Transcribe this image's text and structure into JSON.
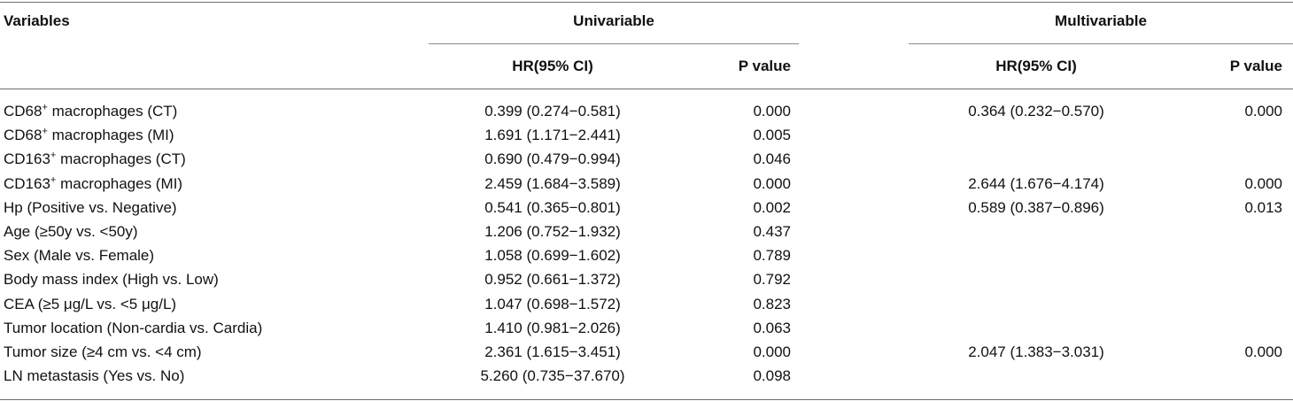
{
  "table": {
    "headers": {
      "variables": "Variables",
      "univariable": "Univariable",
      "multivariable": "Multivariable",
      "uni_hr": "HR(95% CI)",
      "uni_p": "P value",
      "multi_hr": "HR(95% CI)",
      "multi_p": "P value"
    },
    "rows": [
      {
        "label": "CD68",
        "sup": "+",
        "suffix": " macrophages (CT)",
        "uni_hr": "0.399 (0.274−0.581)",
        "uni_p": "0.000",
        "multi_hr": "0.364 (0.232−0.570)",
        "multi_p": "0.000"
      },
      {
        "label": "CD68",
        "sup": "+",
        "suffix": " macrophages (MI)",
        "uni_hr": "1.691 (1.171−2.441)",
        "uni_p": "0.005",
        "multi_hr": "",
        "multi_p": ""
      },
      {
        "label": "CD163",
        "sup": "+",
        "suffix": " macrophages (CT)",
        "uni_hr": "0.690 (0.479−0.994)",
        "uni_p": "0.046",
        "multi_hr": "",
        "multi_p": ""
      },
      {
        "label": "CD163",
        "sup": "+",
        "suffix": " macrophages (MI)",
        "uni_hr": "2.459 (1.684−3.589)",
        "uni_p": "0.000",
        "multi_hr": "2.644 (1.676−4.174)",
        "multi_p": "0.000"
      },
      {
        "label": "Hp (Positive vs. Negative)",
        "sup": "",
        "suffix": "",
        "uni_hr": "0.541 (0.365−0.801)",
        "uni_p": "0.002",
        "multi_hr": "0.589 (0.387−0.896)",
        "multi_p": "0.013"
      },
      {
        "label": "Age (≥50y vs. <50y)",
        "sup": "",
        "suffix": "",
        "uni_hr": "1.206 (0.752−1.932)",
        "uni_p": "0.437",
        "multi_hr": "",
        "multi_p": ""
      },
      {
        "label": "Sex (Male vs. Female)",
        "sup": "",
        "suffix": "",
        "uni_hr": "1.058 (0.699−1.602)",
        "uni_p": "0.789",
        "multi_hr": "",
        "multi_p": ""
      },
      {
        "label": "Body mass index (High vs. Low)",
        "sup": "",
        "suffix": "",
        "uni_hr": "0.952 (0.661−1.372)",
        "uni_p": "0.792",
        "multi_hr": "",
        "multi_p": ""
      },
      {
        "label": "CEA (≥5 μg/L vs. <5 μg/L)",
        "sup": "",
        "suffix": "",
        "uni_hr": "1.047 (0.698−1.572)",
        "uni_p": "0.823",
        "multi_hr": "",
        "multi_p": ""
      },
      {
        "label": "Tumor location (Non-cardia vs. Cardia)",
        "sup": "",
        "suffix": "",
        "uni_hr": "1.410 (0.981−2.026)",
        "uni_p": "0.063",
        "multi_hr": "",
        "multi_p": ""
      },
      {
        "label": "Tumor size (≥4 cm vs. <4 cm)",
        "sup": "",
        "suffix": "",
        "uni_hr": "2.361 (1.615−3.451)",
        "uni_p": "0.000",
        "multi_hr": "2.047 (1.383−3.031)",
        "multi_p": "0.000"
      },
      {
        "label": "LN metastasis (Yes vs. No)",
        "sup": "",
        "suffix": "",
        "uni_hr": "5.260 (0.735−37.670)",
        "uni_p": "0.098",
        "multi_hr": "",
        "multi_p": ""
      }
    ]
  }
}
